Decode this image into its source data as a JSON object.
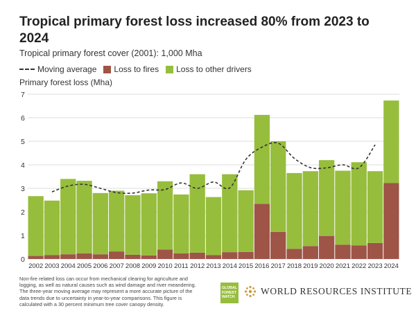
{
  "header": {
    "title": "Tropical primary forest loss increased 80% from 2023 to 2024",
    "subtitle": "Tropical primary forest cover (2001): 1,000 Mha"
  },
  "legend": {
    "items": [
      {
        "label": "Moving average",
        "kind": "dashed-line",
        "color": "#333333"
      },
      {
        "label": "Loss to fires",
        "kind": "swatch",
        "color": "#9e5447"
      },
      {
        "label": "Loss to other drivers",
        "kind": "swatch",
        "color": "#97bd3d"
      }
    ]
  },
  "chart_data": {
    "type": "bar",
    "stacked": true,
    "ylabel": "Primary forest loss (Mha)",
    "ylim": [
      0,
      7
    ],
    "yticks": [
      0,
      1,
      2,
      3,
      4,
      5,
      6,
      7
    ],
    "grid": true,
    "legend_position": "top-left",
    "categories": [
      "2002",
      "2003",
      "2004",
      "2005",
      "2006",
      "2007",
      "2008",
      "2009",
      "2010",
      "2011",
      "2012",
      "2013",
      "2014",
      "2015",
      "2016",
      "2017",
      "2018",
      "2019",
      "2020",
      "2021",
      "2022",
      "2023",
      "2024"
    ],
    "series": [
      {
        "name": "Loss to fires",
        "color": "#9e5447",
        "values": [
          0.13,
          0.17,
          0.2,
          0.24,
          0.2,
          0.32,
          0.18,
          0.15,
          0.4,
          0.24,
          0.27,
          0.17,
          0.29,
          0.3,
          2.34,
          1.15,
          0.43,
          0.55,
          0.98,
          0.61,
          0.58,
          0.68,
          3.23
        ]
      },
      {
        "name": "Loss to other drivers",
        "color": "#97bd3d",
        "values": [
          2.54,
          2.31,
          3.2,
          3.08,
          2.6,
          2.58,
          2.53,
          2.64,
          2.9,
          2.5,
          3.33,
          2.46,
          3.31,
          2.62,
          3.78,
          3.85,
          3.22,
          3.18,
          3.22,
          3.14,
          3.53,
          3.05,
          3.5
        ]
      },
      {
        "name": "Moving average",
        "type": "line",
        "style": "dashed",
        "color": "#333333",
        "values": [
          null,
          2.85,
          3.1,
          3.17,
          3.0,
          2.82,
          2.8,
          2.93,
          2.95,
          3.23,
          3.0,
          3.27,
          3.02,
          4.23,
          4.75,
          4.92,
          4.27,
          3.88,
          3.87,
          4.0,
          3.87,
          4.85,
          null
        ]
      }
    ]
  },
  "footer": {
    "note": "Non-fire related loss can occur from mechanical clearing for agriculture and logging, as well as natural causes such as wind damage and river meandering. The three-year moving average may represent a more accurate picture of the data trends due to uncertainty in year-to-year comparisons. This figure is calculated with a 30 percent minimum tree cover canopy density.",
    "gfw_logo_lines": [
      "GLOBAL",
      "FOREST",
      "WATCH"
    ],
    "wri_text": "WORLD RESOURCES INSTITUTE"
  }
}
